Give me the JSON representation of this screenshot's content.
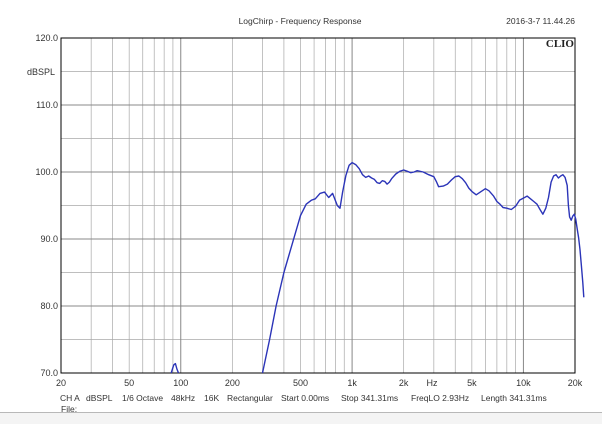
{
  "chart_data": {
    "type": "line",
    "title": "LogChirp - Frequency Response",
    "timestamp": "2016-3-7 11.44.26",
    "brand": "CLIO",
    "ylabel": "dBSPL",
    "xlabel": "Hz",
    "x_scale": "log",
    "xlim": [
      20,
      20000
    ],
    "ylim": [
      70,
      120
    ],
    "grid": true,
    "y_ticks": [
      {
        "value": 70,
        "label": "70.0"
      },
      {
        "value": 80,
        "label": "80.0"
      },
      {
        "value": 90,
        "label": "90.0"
      },
      {
        "value": 100,
        "label": "100.0"
      },
      {
        "value": 110,
        "label": "110.0"
      },
      {
        "value": 120,
        "label": "120.0"
      }
    ],
    "x_ticks": [
      {
        "value": 20,
        "label": "20"
      },
      {
        "value": 50,
        "label": "50"
      },
      {
        "value": 100,
        "label": "100"
      },
      {
        "value": 200,
        "label": "200"
      },
      {
        "value": 500,
        "label": "500"
      },
      {
        "value": 1000,
        "label": "1k"
      },
      {
        "value": 2000,
        "label": "2k"
      },
      {
        "value": 5000,
        "label": "5k"
      },
      {
        "value": 10000,
        "label": "10k"
      },
      {
        "value": 20000,
        "label": "20k"
      }
    ],
    "series": [
      {
        "color": "#2b34b8",
        "segments": [
          [
            [
              88,
              70
            ],
            [
              91,
              71.2
            ],
            [
              93,
              71.4
            ],
            [
              95,
              70.6
            ],
            [
              97,
              70
            ]
          ],
          [
            [
              300,
              70
            ],
            [
              330,
              75
            ],
            [
              360,
              80
            ],
            [
              400,
              85
            ],
            [
              450,
              89.5
            ],
            [
              500,
              93.5
            ],
            [
              540,
              95.2
            ],
            [
              580,
              95.8
            ],
            [
              610,
              96
            ],
            [
              650,
              96.8
            ],
            [
              690,
              97
            ],
            [
              730,
              96.2
            ],
            [
              770,
              96.8
            ],
            [
              820,
              95
            ],
            [
              850,
              94.6
            ],
            [
              880,
              97
            ],
            [
              920,
              99.5
            ],
            [
              960,
              101
            ],
            [
              1000,
              101.4
            ],
            [
              1050,
              101.1
            ],
            [
              1100,
              100.5
            ],
            [
              1150,
              99.6
            ],
            [
              1200,
              99.2
            ],
            [
              1250,
              99.4
            ],
            [
              1300,
              99.1
            ],
            [
              1350,
              98.9
            ],
            [
              1400,
              98.4
            ],
            [
              1450,
              98.3
            ],
            [
              1500,
              98.7
            ],
            [
              1550,
              98.6
            ],
            [
              1600,
              98.2
            ],
            [
              1650,
              98.5
            ],
            [
              1700,
              99
            ],
            [
              1800,
              99.7
            ],
            [
              1900,
              100.1
            ],
            [
              2000,
              100.3
            ],
            [
              2100,
              100.1
            ],
            [
              2200,
              99.9
            ],
            [
              2300,
              100
            ],
            [
              2400,
              100.2
            ],
            [
              2600,
              100
            ],
            [
              2800,
              99.6
            ],
            [
              3000,
              99.3
            ],
            [
              3100,
              98.6
            ],
            [
              3200,
              97.8
            ],
            [
              3400,
              97.9
            ],
            [
              3600,
              98.2
            ],
            [
              3800,
              98.8
            ],
            [
              4000,
              99.3
            ],
            [
              4200,
              99.4
            ],
            [
              4400,
              99
            ],
            [
              4600,
              98.4
            ],
            [
              4800,
              97.6
            ],
            [
              5000,
              97.1
            ],
            [
              5300,
              96.6
            ],
            [
              5600,
              97
            ],
            [
              6000,
              97.5
            ],
            [
              6300,
              97.2
            ],
            [
              6700,
              96.4
            ],
            [
              7000,
              95.6
            ],
            [
              7300,
              95.2
            ],
            [
              7600,
              94.7
            ],
            [
              8000,
              94.6
            ],
            [
              8500,
              94.4
            ],
            [
              9000,
              94.9
            ],
            [
              9500,
              95.8
            ],
            [
              10000,
              96.1
            ],
            [
              10500,
              96.4
            ],
            [
              11000,
              96
            ],
            [
              11500,
              95.6
            ],
            [
              12000,
              95.2
            ],
            [
              12500,
              94.4
            ],
            [
              13000,
              93.7
            ],
            [
              13500,
              94.6
            ],
            [
              14000,
              96.2
            ],
            [
              14500,
              98.5
            ],
            [
              15000,
              99.4
            ],
            [
              15500,
              99.6
            ],
            [
              16000,
              99.1
            ],
            [
              16500,
              99.4
            ],
            [
              17000,
              99.6
            ],
            [
              17500,
              99.2
            ],
            [
              18000,
              98
            ],
            [
              18300,
              95
            ],
            [
              18600,
              93.3
            ],
            [
              19000,
              92.8
            ],
            [
              19400,
              93.4
            ],
            [
              19800,
              93.7
            ],
            [
              20200,
              93
            ],
            [
              20600,
              91.5
            ],
            [
              21000,
              90.2
            ],
            [
              21400,
              88.4
            ],
            [
              21800,
              86
            ],
            [
              22200,
              83.5
            ],
            [
              22500,
              81.3
            ]
          ]
        ]
      }
    ]
  },
  "info_row": [
    "CH A",
    "dBSPL",
    "1/6 Octave",
    "48kHz",
    "16K",
    "Rectangular",
    "Start 0.00ms",
    "Stop 341.31ms",
    "FreqLO 2.93Hz",
    "Length 341.31ms"
  ],
  "file_label": "File:"
}
